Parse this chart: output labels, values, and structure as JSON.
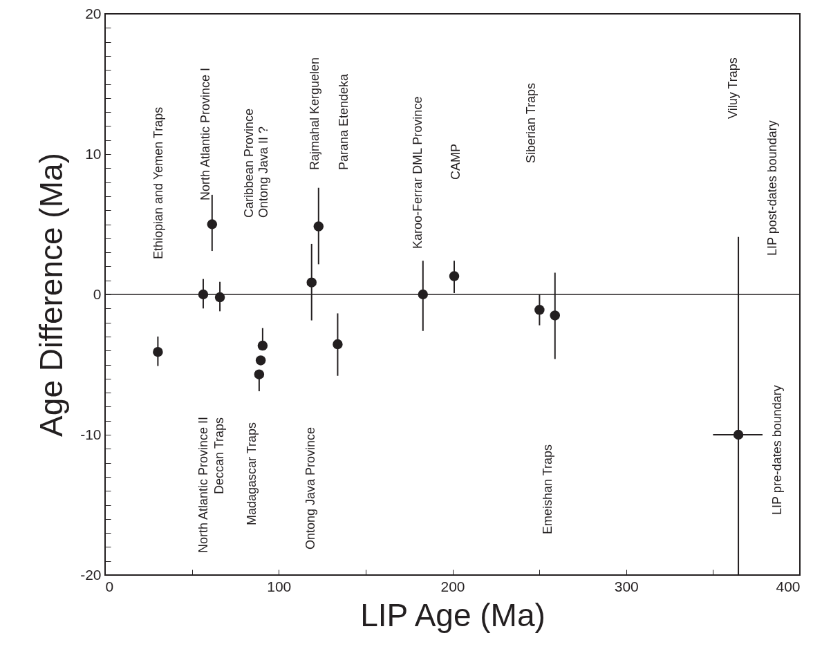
{
  "chart_data": {
    "type": "scatter",
    "xlabel": "LIP Age (Ma)",
    "ylabel": "Age Difference (Ma)",
    "x": [
      30.4,
      56.5,
      61.6,
      66.1,
      88.7,
      89.6,
      90.7,
      118.9,
      122.9,
      133.9,
      183,
      201,
      250.1,
      259,
      364.6
    ],
    "values": [
      -4.1,
      0,
      5,
      -0.2,
      -5.7,
      -4.7,
      -3.65,
      0.85,
      4.85,
      -3.55,
      0,
      1.3,
      -1.1,
      -1.5,
      -10
    ],
    "errors": [
      [
        -5.1,
        -3
      ],
      [
        -1,
        1.1
      ],
      [
        3.1,
        7.1
      ],
      [
        -1.2,
        0.9
      ],
      [
        -6.9,
        -5.7
      ],
      null,
      [
        -3.65,
        -2.4
      ],
      [
        -1.85,
        3.6
      ],
      [
        2.15,
        7.6
      ],
      [
        -5.8,
        -1.35
      ],
      [
        -2.6,
        2.4
      ],
      [
        0.1,
        2.4
      ],
      [
        -2.2,
        0
      ],
      [
        -4.6,
        1.55
      ],
      [
        -20,
        4.1
      ]
    ],
    "xerrors": [
      null,
      null,
      null,
      null,
      null,
      null,
      null,
      null,
      null,
      null,
      null,
      null,
      null,
      null,
      [
        350,
        378.5
      ]
    ],
    "color": "#231f20",
    "marker": "circle",
    "xlim": [
      0,
      400
    ],
    "xticks": [
      0,
      {
        "value": 50,
        "label": null
      },
      100,
      {
        "value": 150,
        "label": null
      },
      200,
      {
        "value": 250,
        "label": null
      },
      300,
      {
        "value": 350,
        "label": null
      },
      400
    ],
    "ylim": [
      -20,
      20
    ],
    "yticks": [
      -20,
      {
        "value": -19,
        "label": null
      },
      {
        "value": -18,
        "label": null
      },
      {
        "value": -17,
        "label": null
      },
      {
        "value": -16,
        "label": null
      },
      {
        "value": -15,
        "label": null
      },
      {
        "value": -14,
        "label": null
      },
      {
        "value": -13,
        "label": null
      },
      {
        "value": -12,
        "label": null
      },
      {
        "value": -11,
        "label": null
      },
      -10,
      {
        "value": -9,
        "label": null
      },
      {
        "value": -8,
        "label": null
      },
      {
        "value": -7,
        "label": null
      },
      {
        "value": -6,
        "label": null
      },
      {
        "value": -5,
        "label": null
      },
      {
        "value": -4,
        "label": null
      },
      {
        "value": -3,
        "label": null
      },
      {
        "value": -2,
        "label": null
      },
      {
        "value": -1,
        "label": null
      },
      0,
      {
        "value": 1,
        "label": null
      },
      {
        "value": 2,
        "label": null
      },
      {
        "value": 3,
        "label": null
      },
      {
        "value": 4,
        "label": null
      },
      {
        "value": 5,
        "label": null
      },
      {
        "value": 6,
        "label": null
      },
      {
        "value": 7,
        "label": null
      },
      {
        "value": 8,
        "label": null
      },
      {
        "value": 9,
        "label": null
      },
      10,
      {
        "value": 11,
        "label": null
      },
      {
        "value": 12,
        "label": null
      },
      {
        "value": 13,
        "label": null
      },
      {
        "value": 14,
        "label": null
      },
      {
        "value": 15,
        "label": null
      },
      {
        "value": 16,
        "label": null
      },
      {
        "value": 17,
        "label": null
      },
      {
        "value": 18,
        "label": null
      },
      {
        "value": 19,
        "label": null
      },
      20
    ],
    "ref_lines": [
      {
        "axis": "y",
        "value": 0,
        "color": "#231f20"
      }
    ],
    "grid": false,
    "annotations": [
      "Ethiopian and Yemen Traps",
      "North Atlantic Province I",
      "Caribbean Province",
      "Ontong Java II ?",
      "Rajmahal Kerguelen",
      "Parana Etendeka",
      "Karoo-Ferrar DML Province",
      "CAMP",
      "Siberian Traps",
      "Viluy Traps",
      "LIP post-dates boundary",
      "North Atlantic Province II",
      "Deccan Traps",
      "Madagascar Traps",
      "Ontong Java Province",
      "Emeishan Traps",
      "LIP pre-dates boundary"
    ]
  }
}
